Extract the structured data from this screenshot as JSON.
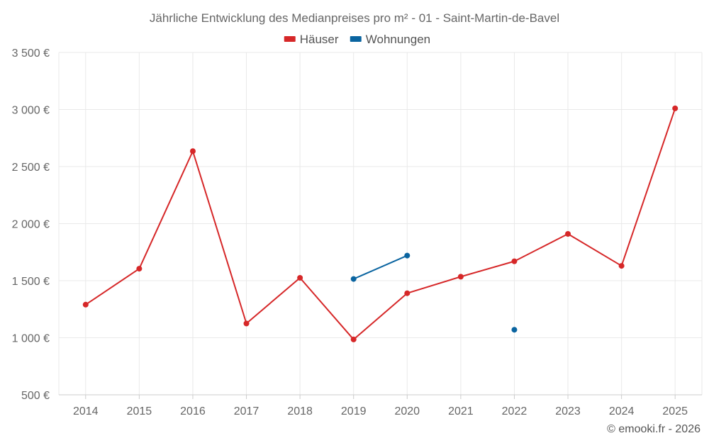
{
  "chart_data": {
    "type": "line",
    "title": "Jährliche Entwicklung des Medianpreises pro m² - 01 - Saint-Martin-de-Bavel",
    "categories": [
      "2014",
      "2015",
      "2016",
      "2017",
      "2018",
      "2019",
      "2020",
      "2021",
      "2022",
      "2023",
      "2024",
      "2025"
    ],
    "ylim": [
      500,
      3500
    ],
    "yticks": [
      500,
      1000,
      1500,
      2000,
      2500,
      3000,
      3500
    ],
    "ytick_labels": [
      "500 €",
      "1 000 €",
      "1 500 €",
      "2 000 €",
      "2 500 €",
      "3 000 €",
      "3 500 €"
    ],
    "grid": true,
    "legend_position": "top-center",
    "series": [
      {
        "name": "Häuser",
        "color": "#d62728",
        "values": [
          1290,
          1605,
          2635,
          1125,
          1525,
          985,
          1390,
          1535,
          1670,
          1910,
          1630,
          3010
        ]
      },
      {
        "name": "Wohnungen",
        "color": "#0a64a0",
        "values": [
          null,
          null,
          null,
          null,
          null,
          1515,
          1720,
          null,
          1070,
          null,
          null,
          null
        ]
      }
    ]
  },
  "footer": "© emooki.fr - 2026"
}
